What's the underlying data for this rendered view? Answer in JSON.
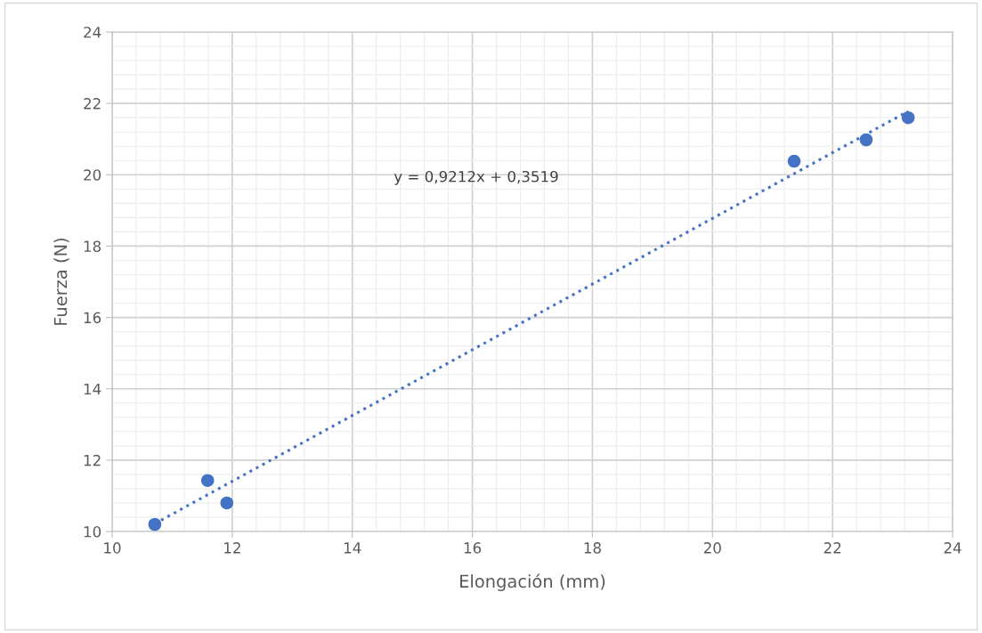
{
  "chart_data": {
    "type": "scatter",
    "xlabel": "Elongación (mm)",
    "ylabel": "Fuerza (N)",
    "xlim": [
      10,
      24
    ],
    "xticks": [
      10,
      12,
      14,
      16,
      18,
      20,
      22,
      24
    ],
    "ylim": [
      10,
      24
    ],
    "yticks": [
      10,
      12,
      14,
      16,
      18,
      20,
      22,
      24
    ],
    "grid": true,
    "marker": "circle",
    "series": [
      {
        "color": "#4472c4",
        "x": [
          10.71,
          11.59,
          11.91,
          21.36,
          22.56,
          23.26
        ],
        "values": [
          10.2,
          11.43,
          10.8,
          20.38,
          20.98,
          21.6
        ]
      },
      {
        "type": "line",
        "color": "#4472c4",
        "line_style": "dotted",
        "marker": "none",
        "x": [
          10.71,
          23.26
        ],
        "values": [
          10.22,
          21.78
        ]
      }
    ],
    "annotations": [
      "y = 0,9212x + 0,3519"
    ]
  }
}
